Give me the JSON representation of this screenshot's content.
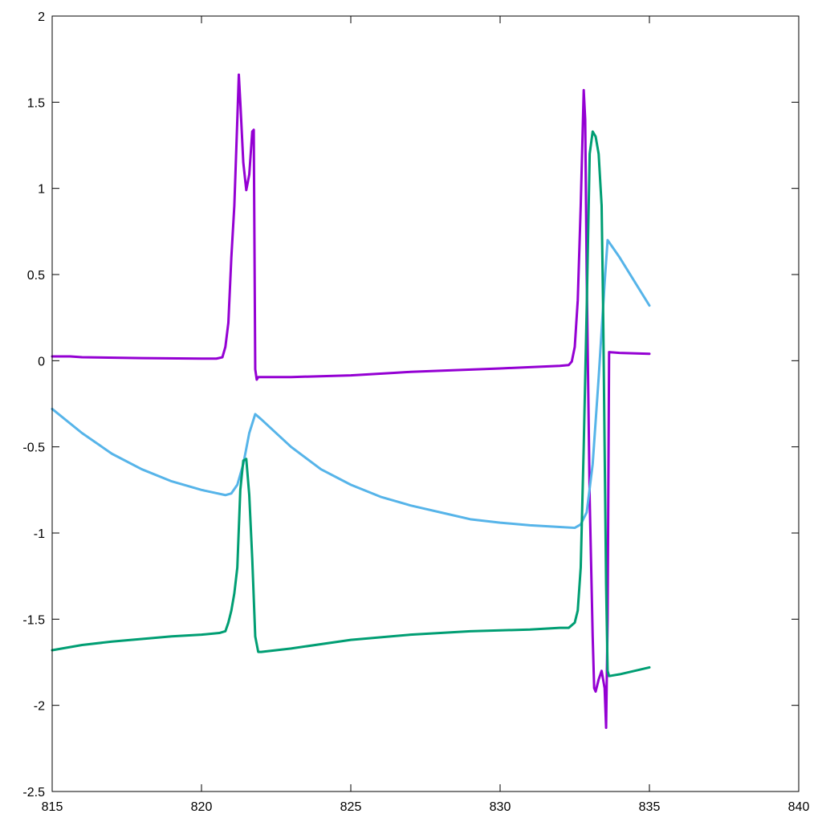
{
  "chart_data": {
    "type": "line",
    "title": "",
    "xlabel": "",
    "ylabel": "",
    "xlim": [
      815,
      840
    ],
    "ylim": [
      -2.5,
      2
    ],
    "x_ticks": [
      815,
      820,
      825,
      830,
      835,
      840
    ],
    "y_ticks": [
      -2.5,
      -2,
      -1.5,
      -1,
      -0.5,
      0,
      0.5,
      1,
      1.5,
      2
    ],
    "x_tick_labels": [
      "815",
      "820",
      "825",
      "830",
      "835",
      "840"
    ],
    "y_tick_labels": [
      "-2.5",
      "-2",
      "-1.5",
      "-1",
      "-0.5",
      "0",
      "0.5",
      "1",
      "1.5",
      "2"
    ],
    "grid": false,
    "series": [
      {
        "color": "#9400d3",
        "points": [
          [
            815,
            0.025
          ],
          [
            815.6,
            0.025
          ],
          [
            816,
            0.02
          ],
          [
            818,
            0.015
          ],
          [
            820,
            0.012
          ],
          [
            820.5,
            0.012
          ],
          [
            820.7,
            0.02
          ],
          [
            820.8,
            0.08
          ],
          [
            820.9,
            0.22
          ],
          [
            821.0,
            0.6
          ],
          [
            821.1,
            0.9
          ],
          [
            821.2,
            1.4
          ],
          [
            821.25,
            1.66
          ],
          [
            821.3,
            1.5
          ],
          [
            821.4,
            1.15
          ],
          [
            821.5,
            0.99
          ],
          [
            821.6,
            1.08
          ],
          [
            821.7,
            1.33
          ],
          [
            821.75,
            1.34
          ],
          [
            821.78,
            0.5
          ],
          [
            821.8,
            -0.05
          ],
          [
            821.85,
            -0.11
          ],
          [
            821.9,
            -0.095
          ],
          [
            823,
            -0.095
          ],
          [
            825,
            -0.085
          ],
          [
            826.5,
            -0.07
          ],
          [
            827,
            -0.065
          ],
          [
            830,
            -0.045
          ],
          [
            832,
            -0.03
          ],
          [
            832.3,
            -0.025
          ],
          [
            832.4,
            -0.005
          ],
          [
            832.5,
            0.08
          ],
          [
            832.6,
            0.35
          ],
          [
            832.7,
            0.9
          ],
          [
            832.8,
            1.57
          ],
          [
            832.85,
            1.4
          ],
          [
            832.9,
            0.5
          ],
          [
            833.0,
            -0.8
          ],
          [
            833.1,
            -1.6
          ],
          [
            833.15,
            -1.9
          ],
          [
            833.2,
            -1.92
          ],
          [
            833.3,
            -1.85
          ],
          [
            833.4,
            -1.8
          ],
          [
            833.5,
            -1.9
          ],
          [
            833.55,
            -2.13
          ],
          [
            833.6,
            -1.5
          ],
          [
            833.65,
            0.05
          ],
          [
            834,
            0.045
          ],
          [
            835,
            0.04
          ]
        ]
      },
      {
        "color": "#56b4e9",
        "points": [
          [
            815,
            -0.28
          ],
          [
            816,
            -0.42
          ],
          [
            817,
            -0.54
          ],
          [
            818,
            -0.63
          ],
          [
            819,
            -0.7
          ],
          [
            820,
            -0.75
          ],
          [
            820.8,
            -0.78
          ],
          [
            821.0,
            -0.77
          ],
          [
            821.2,
            -0.72
          ],
          [
            821.4,
            -0.6
          ],
          [
            821.6,
            -0.42
          ],
          [
            821.8,
            -0.31
          ],
          [
            822,
            -0.34
          ],
          [
            823,
            -0.5
          ],
          [
            824,
            -0.63
          ],
          [
            825,
            -0.72
          ],
          [
            826,
            -0.79
          ],
          [
            827,
            -0.84
          ],
          [
            828,
            -0.88
          ],
          [
            829,
            -0.92
          ],
          [
            830,
            -0.94
          ],
          [
            831,
            -0.955
          ],
          [
            832,
            -0.965
          ],
          [
            832.5,
            -0.97
          ],
          [
            832.7,
            -0.95
          ],
          [
            832.9,
            -0.88
          ],
          [
            833.1,
            -0.6
          ],
          [
            833.3,
            -0.1
          ],
          [
            833.5,
            0.45
          ],
          [
            833.6,
            0.7
          ],
          [
            834,
            0.6
          ],
          [
            835,
            0.32
          ]
        ]
      },
      {
        "color": "#009e73",
        "points": [
          [
            815,
            -1.68
          ],
          [
            816,
            -1.65
          ],
          [
            817,
            -1.63
          ],
          [
            818,
            -1.615
          ],
          [
            819,
            -1.6
          ],
          [
            820,
            -1.59
          ],
          [
            820.6,
            -1.58
          ],
          [
            820.8,
            -1.57
          ],
          [
            820.9,
            -1.52
          ],
          [
            821.0,
            -1.45
          ],
          [
            821.1,
            -1.35
          ],
          [
            821.2,
            -1.2
          ],
          [
            821.3,
            -0.75
          ],
          [
            821.4,
            -0.58
          ],
          [
            821.5,
            -0.57
          ],
          [
            821.6,
            -0.78
          ],
          [
            821.7,
            -1.15
          ],
          [
            821.8,
            -1.6
          ],
          [
            821.9,
            -1.69
          ],
          [
            822,
            -1.69
          ],
          [
            823,
            -1.67
          ],
          [
            825,
            -1.62
          ],
          [
            827,
            -1.59
          ],
          [
            829,
            -1.57
          ],
          [
            831,
            -1.56
          ],
          [
            832,
            -1.55
          ],
          [
            832.3,
            -1.55
          ],
          [
            832.5,
            -1.52
          ],
          [
            832.6,
            -1.45
          ],
          [
            832.7,
            -1.2
          ],
          [
            832.8,
            -0.5
          ],
          [
            832.9,
            0.3
          ],
          [
            833.0,
            1.2
          ],
          [
            833.1,
            1.33
          ],
          [
            833.2,
            1.3
          ],
          [
            833.3,
            1.2
          ],
          [
            833.4,
            0.9
          ],
          [
            833.45,
            0.3
          ],
          [
            833.5,
            -0.5
          ],
          [
            833.55,
            -1.3
          ],
          [
            833.6,
            -1.8
          ],
          [
            833.65,
            -1.83
          ],
          [
            834,
            -1.82
          ],
          [
            835,
            -1.78
          ]
        ]
      }
    ]
  }
}
